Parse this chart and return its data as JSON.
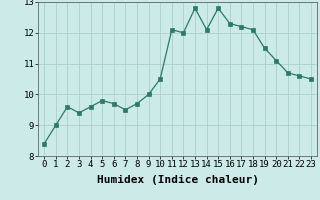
{
  "x": [
    0,
    1,
    2,
    3,
    4,
    5,
    6,
    7,
    8,
    9,
    10,
    11,
    12,
    13,
    14,
    15,
    16,
    17,
    18,
    19,
    20,
    21,
    22,
    23
  ],
  "y": [
    8.4,
    9.0,
    9.6,
    9.4,
    9.6,
    9.8,
    9.7,
    9.5,
    9.7,
    10.0,
    10.5,
    12.1,
    12.0,
    12.8,
    12.1,
    12.8,
    12.3,
    12.2,
    12.1,
    11.5,
    11.1,
    10.7,
    10.6,
    10.5
  ],
  "xlabel": "Humidex (Indice chaleur)",
  "ylim": [
    8,
    13
  ],
  "xlim_left": -0.5,
  "xlim_right": 23.5,
  "yticks": [
    8,
    9,
    10,
    11,
    12,
    13
  ],
  "xticks": [
    0,
    1,
    2,
    3,
    4,
    5,
    6,
    7,
    8,
    9,
    10,
    11,
    12,
    13,
    14,
    15,
    16,
    17,
    18,
    19,
    20,
    21,
    22,
    23
  ],
  "line_color": "#2d7a68",
  "marker": "s",
  "marker_size": 2.5,
  "bg_color": "#cceae7",
  "grid_color": "#aacfcc",
  "xlabel_fontsize": 8,
  "tick_fontsize": 6.5
}
